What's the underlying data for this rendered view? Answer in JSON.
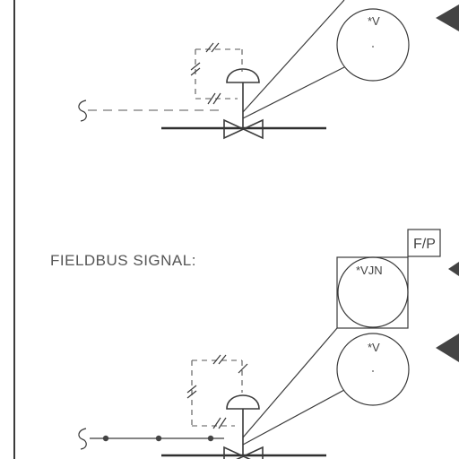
{
  "labels": {
    "fieldbus_signal": "FIELDBUS SIGNAL:",
    "fp_box": "F/P"
  },
  "instruments": {
    "top_bubble_tag": "*V",
    "fieldbus_box_tag": "*VJN",
    "bottom_bubble_tag": "*V"
  },
  "colors": {
    "line": "#3a3a3a",
    "text": "#555555",
    "background": "#ffffff"
  }
}
